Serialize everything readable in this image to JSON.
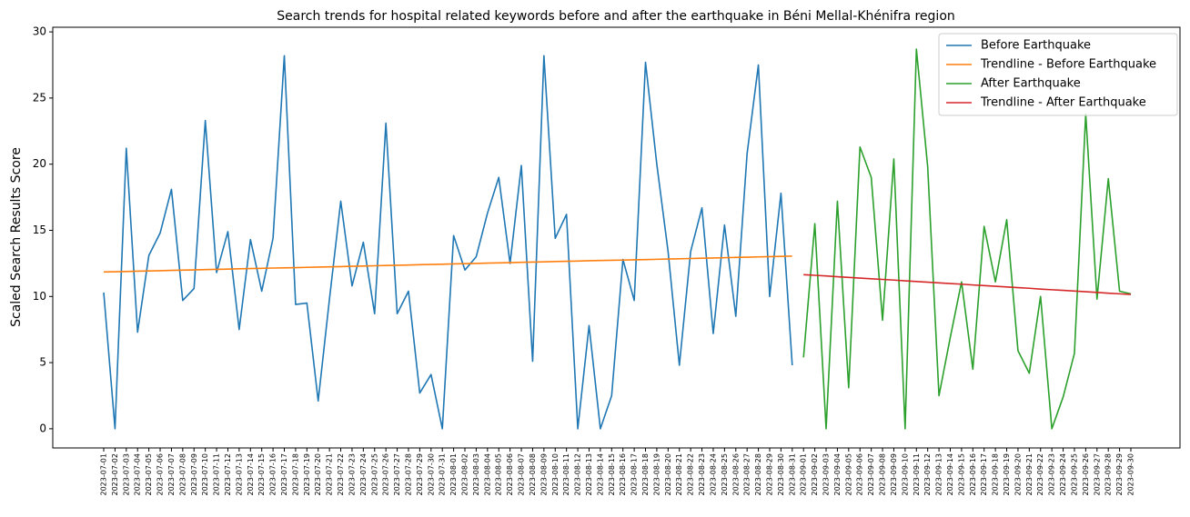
{
  "chart_data": {
    "type": "line",
    "title": "Search trends for hospital related keywords before and after the earthquake in Béni Mellal-Khénifra region",
    "y_label": "Scaled Search Results Score",
    "legend_position": "upper right",
    "ylim": [
      -1.45,
      30.35
    ],
    "yticks": [
      0,
      5,
      10,
      15,
      20,
      25,
      30
    ],
    "categories": [
      "2023-07-01",
      "2023-07-02",
      "2023-07-03",
      "2023-07-04",
      "2023-07-05",
      "2023-07-06",
      "2023-07-07",
      "2023-07-08",
      "2023-07-09",
      "2023-07-10",
      "2023-07-11",
      "2023-07-12",
      "2023-07-13",
      "2023-07-14",
      "2023-07-15",
      "2023-07-16",
      "2023-07-17",
      "2023-07-18",
      "2023-07-19",
      "2023-07-20",
      "2023-07-21",
      "2023-07-22",
      "2023-07-23",
      "2023-07-24",
      "2023-07-25",
      "2023-07-26",
      "2023-07-27",
      "2023-07-28",
      "2023-07-29",
      "2023-07-30",
      "2023-07-31",
      "2023-08-01",
      "2023-08-02",
      "2023-08-03",
      "2023-08-04",
      "2023-08-05",
      "2023-08-06",
      "2023-08-07",
      "2023-08-08",
      "2023-08-09",
      "2023-08-10",
      "2023-08-11",
      "2023-08-12",
      "2023-08-13",
      "2023-08-14",
      "2023-08-15",
      "2023-08-16",
      "2023-08-17",
      "2023-08-18",
      "2023-08-19",
      "2023-08-20",
      "2023-08-21",
      "2023-08-22",
      "2023-08-23",
      "2023-08-24",
      "2023-08-25",
      "2023-08-26",
      "2023-08-27",
      "2023-08-28",
      "2023-08-29",
      "2023-08-30",
      "2023-08-31",
      "2023-09-01",
      "2023-09-02",
      "2023-09-03",
      "2023-09-04",
      "2023-09-05",
      "2023-09-06",
      "2023-09-07",
      "2023-09-08",
      "2023-09-09",
      "2023-09-10",
      "2023-09-11",
      "2023-09-12",
      "2023-09-13",
      "2023-09-14",
      "2023-09-15",
      "2023-09-16",
      "2023-09-17",
      "2023-09-18",
      "2023-09-19",
      "2023-09-20",
      "2023-09-21",
      "2023-09-22",
      "2023-09-23",
      "2023-09-24",
      "2023-09-25",
      "2023-09-26",
      "2023-09-27",
      "2023-09-28",
      "2023-09-29",
      "2023-09-30"
    ],
    "series": [
      {
        "name": "Before Earthquake",
        "color": "#1f77b4",
        "values": [
          10.3,
          0,
          21.2,
          7.3,
          13.1,
          14.8,
          18.1,
          9.7,
          10.6,
          23.3,
          11.8,
          14.9,
          7.5,
          14.3,
          10.4,
          14.4,
          28.2,
          9.4,
          9.5,
          2.1,
          9.8,
          17.2,
          10.8,
          14.1,
          8.7,
          23.1,
          8.7,
          10.4,
          2.7,
          4.1,
          0,
          14.6,
          12.0,
          13.0,
          16.3,
          19.0,
          12.5,
          19.9,
          5.1,
          28.2,
          14.4,
          16.2,
          0,
          7.8,
          0,
          2.5,
          12.8,
          9.7,
          27.7,
          20.0,
          13.4,
          4.8,
          13.4,
          16.7,
          7.2,
          15.4,
          8.5,
          20.8,
          27.5,
          10.0,
          17.8,
          4.8,
          null,
          null,
          null,
          null,
          null,
          null,
          null,
          null,
          null,
          null,
          null,
          null,
          null,
          null,
          null,
          null,
          null,
          null,
          null,
          null,
          null,
          null,
          null,
          null,
          null,
          null,
          null,
          null,
          null,
          null
        ]
      },
      {
        "name": "Trendline - Before Earthquake",
        "color": "#ff7f0e",
        "values": [
          11.85,
          11.87,
          11.89,
          11.91,
          11.93,
          11.95,
          11.97,
          11.99,
          12.01,
          12.03,
          12.05,
          12.07,
          12.09,
          12.11,
          12.13,
          12.15,
          12.16,
          12.18,
          12.2,
          12.22,
          12.24,
          12.26,
          12.28,
          12.3,
          12.32,
          12.34,
          12.36,
          12.38,
          12.4,
          12.42,
          12.44,
          12.46,
          12.48,
          12.5,
          12.52,
          12.54,
          12.56,
          12.58,
          12.6,
          12.62,
          12.64,
          12.66,
          12.68,
          12.7,
          12.72,
          12.74,
          12.75,
          12.77,
          12.79,
          12.81,
          12.83,
          12.85,
          12.87,
          12.89,
          12.91,
          12.93,
          12.95,
          12.97,
          12.99,
          13.01,
          13.03,
          13.05,
          null,
          null,
          null,
          null,
          null,
          null,
          null,
          null,
          null,
          null,
          null,
          null,
          null,
          null,
          null,
          null,
          null,
          null,
          null,
          null,
          null,
          null,
          null,
          null,
          null,
          null,
          null,
          null,
          null,
          null
        ]
      },
      {
        "name": "After Earthquake",
        "color": "#2ca02c",
        "values": [
          null,
          null,
          null,
          null,
          null,
          null,
          null,
          null,
          null,
          null,
          null,
          null,
          null,
          null,
          null,
          null,
          null,
          null,
          null,
          null,
          null,
          null,
          null,
          null,
          null,
          null,
          null,
          null,
          null,
          null,
          null,
          null,
          null,
          null,
          null,
          null,
          null,
          null,
          null,
          null,
          null,
          null,
          null,
          null,
          null,
          null,
          null,
          null,
          null,
          null,
          null,
          null,
          null,
          null,
          null,
          null,
          null,
          null,
          null,
          null,
          null,
          null,
          5.4,
          15.5,
          0,
          17.2,
          3.1,
          21.3,
          19.0,
          8.2,
          20.4,
          0,
          28.7,
          19.8,
          2.5,
          6.9,
          11.1,
          4.5,
          15.3,
          11.1,
          15.8,
          5.9,
          4.2,
          10.0,
          0,
          2.4,
          5.7,
          23.8,
          9.8,
          18.9,
          10.4,
          10.2
        ]
      },
      {
        "name": "Trendline - After Earthquake",
        "color": "#d62728",
        "values": [
          null,
          null,
          null,
          null,
          null,
          null,
          null,
          null,
          null,
          null,
          null,
          null,
          null,
          null,
          null,
          null,
          null,
          null,
          null,
          null,
          null,
          null,
          null,
          null,
          null,
          null,
          null,
          null,
          null,
          null,
          null,
          null,
          null,
          null,
          null,
          null,
          null,
          null,
          null,
          null,
          null,
          null,
          null,
          null,
          null,
          null,
          null,
          null,
          null,
          null,
          null,
          null,
          null,
          null,
          null,
          null,
          null,
          null,
          null,
          null,
          null,
          null,
          11.65,
          11.6,
          11.55,
          11.49,
          11.44,
          11.39,
          11.34,
          11.29,
          11.24,
          11.18,
          11.13,
          11.08,
          11.03,
          10.98,
          10.93,
          10.87,
          10.82,
          10.77,
          10.72,
          10.67,
          10.62,
          10.56,
          10.51,
          10.46,
          10.41,
          10.36,
          10.31,
          10.25,
          10.2,
          10.15
        ]
      }
    ]
  }
}
